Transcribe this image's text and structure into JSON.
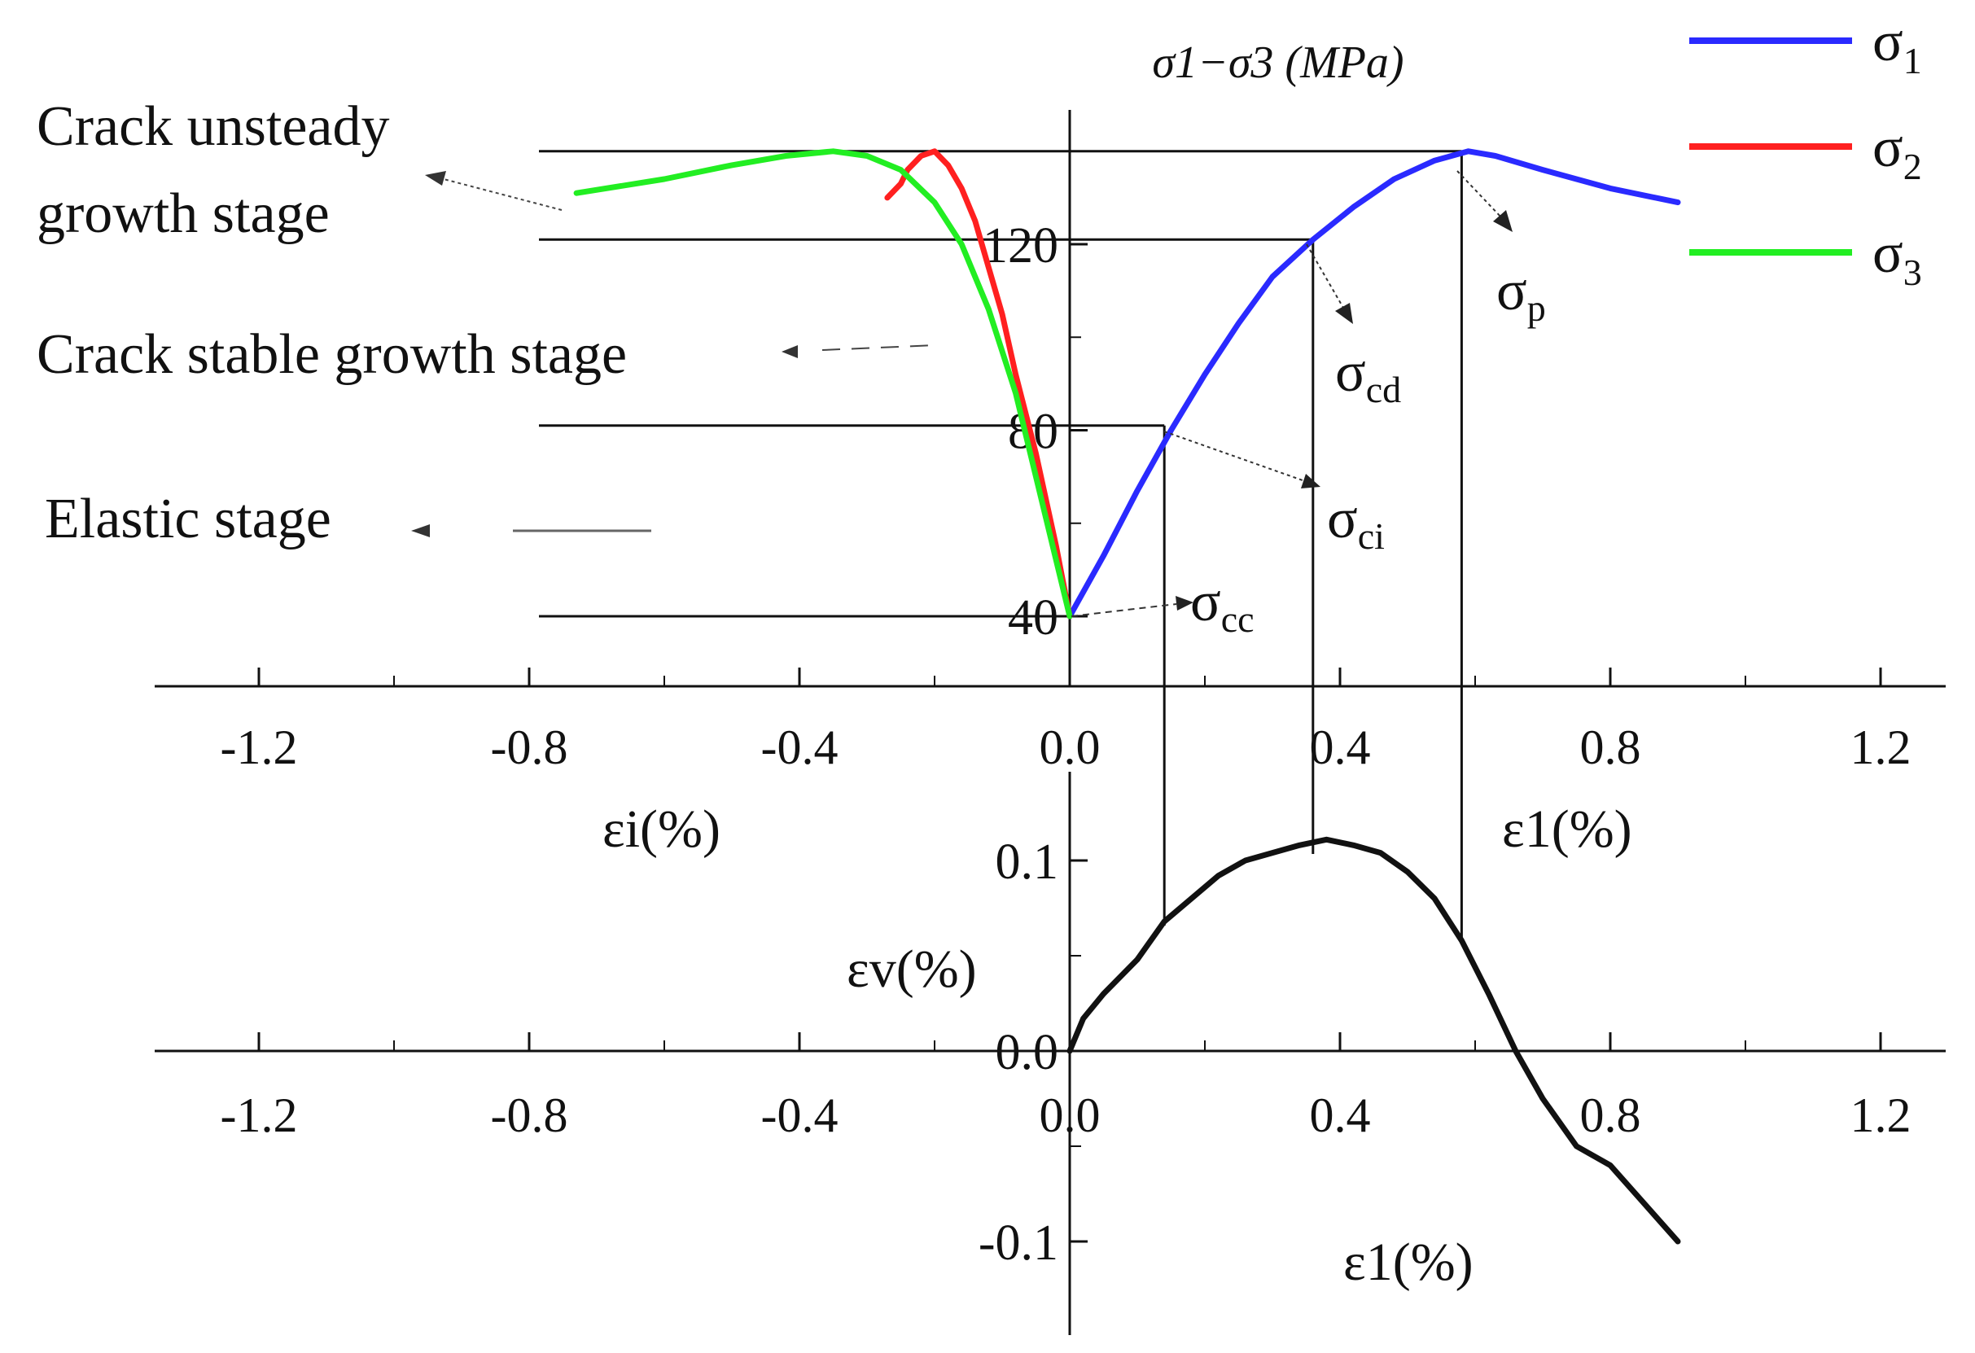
{
  "chart_data": [
    {
      "type": "line",
      "title": "",
      "xlabel_left": "εi(%)",
      "xlabel_right": "ε1(%)",
      "ylabel": "σ1−σ3 (MPa)",
      "xlim": [
        -1.3,
        1.3
      ],
      "ylim": [
        40,
        140
      ],
      "x_ticks": [
        -1.2,
        -0.8,
        -0.4,
        0.0,
        0.4,
        0.8,
        1.2
      ],
      "x_tick_labels": [
        "-1.2",
        "-0.8",
        "-0.4",
        "0.0",
        "0.4",
        "0.8",
        "1.2"
      ],
      "y_ticks": [
        40,
        80,
        120
      ],
      "y_tick_labels": [
        "40",
        "80",
        "120"
      ],
      "legend_position": "top-right",
      "series": [
        {
          "name": "σ1",
          "color": "#2a2aff",
          "x": [
            0,
            0.05,
            0.1,
            0.15,
            0.2,
            0.25,
            0.3,
            0.36,
            0.42,
            0.48,
            0.54,
            0.59,
            0.63,
            0.7,
            0.8,
            0.9
          ],
          "y": [
            40,
            53,
            67,
            80,
            92,
            103,
            113,
            121,
            128,
            134,
            138,
            140,
            139,
            136,
            132,
            129
          ]
        },
        {
          "name": "σ2",
          "color": "#ff2020",
          "x": [
            0,
            -0.02,
            -0.05,
            -0.08,
            -0.1,
            -0.12,
            -0.14,
            -0.16,
            -0.18,
            -0.2,
            -0.22,
            -0.24,
            -0.25,
            -0.27
          ],
          "y": [
            40,
            55,
            75,
            92,
            105,
            115,
            125,
            132,
            137,
            140,
            139,
            136,
            133,
            130
          ]
        },
        {
          "name": "σ3",
          "color": "#22ee22",
          "x": [
            0,
            -0.02,
            -0.05,
            -0.08,
            -0.12,
            -0.16,
            -0.2,
            -0.25,
            -0.3,
            -0.35,
            -0.42,
            -0.5,
            -0.6,
            -0.73
          ],
          "y": [
            40,
            52,
            70,
            88,
            106,
            120,
            129,
            136,
            139,
            140,
            139,
            137,
            134,
            131
          ]
        }
      ],
      "thresholds": [
        {
          "name": "σcc",
          "stress": 40,
          "strain": 0.0
        },
        {
          "name": "σci",
          "stress": 81,
          "strain": 0.14
        },
        {
          "name": "σcd",
          "stress": 121,
          "strain": 0.36
        },
        {
          "name": "σp",
          "stress": 140,
          "strain": 0.58
        }
      ],
      "stage_labels": [
        {
          "text": "Crack unsteady",
          "text2": "growth stage"
        },
        {
          "text": "Crack stable growth stage"
        },
        {
          "text": "Elastic stage"
        }
      ]
    },
    {
      "type": "line",
      "title": "",
      "xlabel": "ε1(%)",
      "ylabel": "εv(%)",
      "xlim": [
        -1.3,
        1.3
      ],
      "ylim": [
        -0.15,
        0.15
      ],
      "x_ticks": [
        -1.2,
        -0.8,
        -0.4,
        0.0,
        0.4,
        0.8,
        1.2
      ],
      "x_tick_labels": [
        "-1.2",
        "-0.8",
        "-0.4",
        "0.0",
        "0.4",
        "0.8",
        "1.2"
      ],
      "y_ticks": [
        -0.1,
        0.0,
        0.1
      ],
      "y_tick_labels": [
        "-0.1",
        "0.0",
        "0.1"
      ],
      "series": [
        {
          "name": "",
          "color": "#111111",
          "x": [
            0,
            0.02,
            0.05,
            0.1,
            0.14,
            0.18,
            0.22,
            0.26,
            0.3,
            0.34,
            0.38,
            0.42,
            0.46,
            0.5,
            0.54,
            0.58,
            0.62,
            0.66,
            0.7,
            0.75,
            0.8,
            0.85,
            0.9
          ],
          "y": [
            0,
            0.017,
            0.03,
            0.048,
            0.068,
            0.08,
            0.092,
            0.1,
            0.104,
            0.108,
            0.111,
            0.108,
            0.104,
            0.094,
            0.08,
            0.058,
            0.03,
            0,
            -0.025,
            -0.05,
            -0.06,
            -0.08,
            -0.1
          ]
        }
      ]
    }
  ]
}
